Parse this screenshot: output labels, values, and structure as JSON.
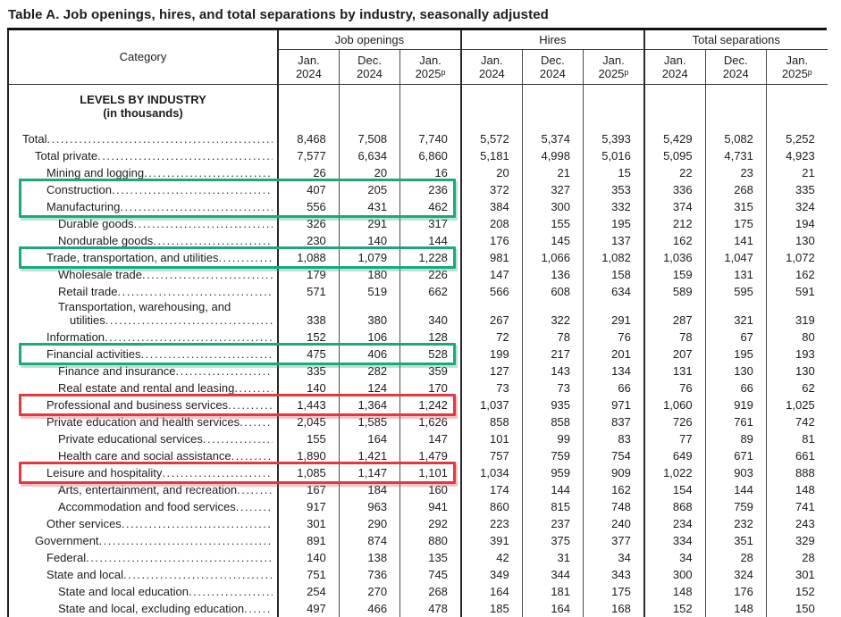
{
  "title": "Table A. Job openings, hires, and total separations by industry, seasonally adjusted",
  "table": {
    "category_header": "Category",
    "groups": [
      {
        "label": "Job openings"
      },
      {
        "label": "Hires"
      },
      {
        "label": "Total separations"
      }
    ],
    "month_columns": [
      "Jan.\n2024",
      "Dec.\n2024",
      "Jan.\n2025ᵖ"
    ],
    "section_header": {
      "line1": "LEVELS BY INDUSTRY",
      "line2": "(in thousands)"
    },
    "rows": [
      {
        "label": "Total",
        "indent": 0,
        "values": [
          "8,468",
          "7,508",
          "7,740",
          "5,572",
          "5,374",
          "5,393",
          "5,429",
          "5,082",
          "5,252"
        ]
      },
      {
        "label": "Total private",
        "indent": 1,
        "values": [
          "7,577",
          "6,634",
          "6,860",
          "5,181",
          "4,998",
          "5,016",
          "5,095",
          "4,731",
          "4,923"
        ]
      },
      {
        "label": "Mining and logging",
        "indent": 2,
        "values": [
          "26",
          "20",
          "16",
          "20",
          "21",
          "15",
          "22",
          "23",
          "21"
        ]
      },
      {
        "label": "Construction",
        "indent": 2,
        "values": [
          "407",
          "205",
          "236",
          "372",
          "327",
          "353",
          "336",
          "268",
          "335"
        ]
      },
      {
        "label": "Manufacturing",
        "indent": 2,
        "values": [
          "556",
          "431",
          "462",
          "384",
          "300",
          "332",
          "374",
          "315",
          "324"
        ]
      },
      {
        "label": "Durable goods",
        "indent": 3,
        "values": [
          "326",
          "291",
          "317",
          "208",
          "155",
          "195",
          "212",
          "175",
          "194"
        ]
      },
      {
        "label": "Nondurable goods",
        "indent": 3,
        "values": [
          "230",
          "140",
          "144",
          "176",
          "145",
          "137",
          "162",
          "141",
          "130"
        ]
      },
      {
        "label": "Trade, transportation, and utilities",
        "indent": 2,
        "values": [
          "1,088",
          "1,079",
          "1,228",
          "981",
          "1,066",
          "1,082",
          "1,036",
          "1,047",
          "1,072"
        ]
      },
      {
        "label": "Wholesale trade",
        "indent": 3,
        "values": [
          "179",
          "180",
          "226",
          "147",
          "136",
          "158",
          "159",
          "131",
          "162"
        ]
      },
      {
        "label": "Retail trade",
        "indent": 3,
        "values": [
          "571",
          "519",
          "662",
          "566",
          "608",
          "634",
          "589",
          "595",
          "591"
        ]
      },
      {
        "label": "Transportation, warehousing, and",
        "label2": "utilities",
        "indent": 3,
        "values": [
          "338",
          "380",
          "340",
          "267",
          "322",
          "291",
          "287",
          "321",
          "319"
        ]
      },
      {
        "label": "Information",
        "indent": 2,
        "values": [
          "152",
          "106",
          "128",
          "72",
          "78",
          "76",
          "78",
          "67",
          "80"
        ]
      },
      {
        "label": "Financial activities",
        "indent": 2,
        "values": [
          "475",
          "406",
          "528",
          "199",
          "217",
          "201",
          "207",
          "195",
          "193"
        ]
      },
      {
        "label": "Finance and insurance",
        "indent": 3,
        "values": [
          "335",
          "282",
          "359",
          "127",
          "143",
          "134",
          "131",
          "130",
          "130"
        ]
      },
      {
        "label": "Real estate and rental and leasing",
        "indent": 3,
        "values": [
          "140",
          "124",
          "170",
          "73",
          "73",
          "66",
          "76",
          "66",
          "62"
        ]
      },
      {
        "label": "Professional and business services",
        "indent": 2,
        "values": [
          "1,443",
          "1,364",
          "1,242",
          "1,037",
          "935",
          "971",
          "1,060",
          "919",
          "1,025"
        ]
      },
      {
        "label": "Private education and health services",
        "indent": 2,
        "values": [
          "2,045",
          "1,585",
          "1,626",
          "858",
          "858",
          "837",
          "726",
          "761",
          "742"
        ]
      },
      {
        "label": "Private educational services",
        "indent": 3,
        "values": [
          "155",
          "164",
          "147",
          "101",
          "99",
          "83",
          "77",
          "89",
          "81"
        ]
      },
      {
        "label": "Health care and social assistance",
        "indent": 3,
        "values": [
          "1,890",
          "1,421",
          "1,479",
          "757",
          "759",
          "754",
          "649",
          "671",
          "661"
        ]
      },
      {
        "label": "Leisure and hospitality",
        "indent": 2,
        "values": [
          "1,085",
          "1,147",
          "1,101",
          "1,034",
          "959",
          "909",
          "1,022",
          "903",
          "888"
        ]
      },
      {
        "label": "Arts, entertainment, and recreation",
        "indent": 3,
        "values": [
          "167",
          "184",
          "160",
          "174",
          "144",
          "162",
          "154",
          "144",
          "148"
        ]
      },
      {
        "label": "Accommodation and food services",
        "indent": 3,
        "values": [
          "917",
          "963",
          "941",
          "860",
          "815",
          "748",
          "868",
          "759",
          "741"
        ]
      },
      {
        "label": "Other services",
        "indent": 2,
        "values": [
          "301",
          "290",
          "292",
          "223",
          "237",
          "240",
          "234",
          "232",
          "243"
        ]
      },
      {
        "label": "Government",
        "indent": 1,
        "values": [
          "891",
          "874",
          "880",
          "391",
          "375",
          "377",
          "334",
          "351",
          "329"
        ]
      },
      {
        "label": "Federal",
        "indent": 2,
        "values": [
          "140",
          "138",
          "135",
          "42",
          "31",
          "34",
          "34",
          "28",
          "28"
        ]
      },
      {
        "label": "State and local",
        "indent": 2,
        "values": [
          "751",
          "736",
          "745",
          "349",
          "344",
          "343",
          "300",
          "324",
          "301"
        ]
      },
      {
        "label": "State and local education",
        "indent": 3,
        "values": [
          "254",
          "270",
          "268",
          "164",
          "181",
          "175",
          "148",
          "176",
          "152"
        ]
      },
      {
        "label": "State and local, excluding education",
        "indent": 3,
        "values": [
          "497",
          "466",
          "478",
          "185",
          "164",
          "168",
          "152",
          "148",
          "150"
        ]
      }
    ],
    "highlight_colors": {
      "green": "#1ea67e",
      "red": "#e23940"
    },
    "highlights": [
      {
        "name": "construction-manufacturing",
        "rows": [
          3,
          4
        ],
        "color": "#1ea67e",
        "glow": "rgba(30,166,126,0.3)"
      },
      {
        "name": "trade-transportation-utilities",
        "rows": [
          7,
          7
        ],
        "color": "#1ea67e",
        "glow": "rgba(30,166,126,0.3)"
      },
      {
        "name": "financial-activities",
        "rows": [
          12,
          12
        ],
        "color": "#1ea67e",
        "glow": "rgba(30,166,126,0.3)"
      },
      {
        "name": "professional-business-services",
        "rows": [
          15,
          15
        ],
        "color": "#e23940",
        "glow": "rgba(226,57,64,0.3)"
      },
      {
        "name": "leisure-hospitality",
        "rows": [
          19,
          19
        ],
        "color": "#e23940",
        "glow": "rgba(226,57,64,0.3)"
      }
    ]
  }
}
